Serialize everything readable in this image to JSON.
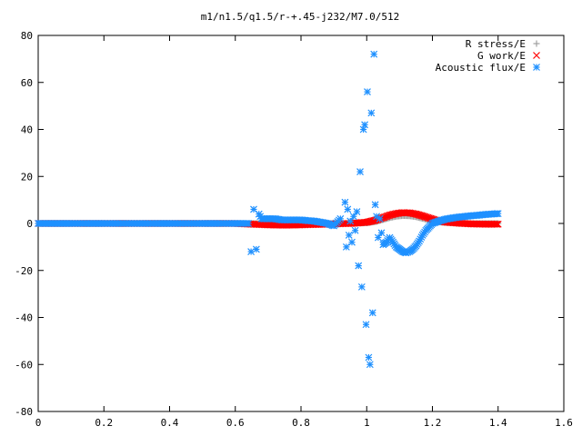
{
  "chart_data": {
    "type": "scatter",
    "title": "m1/n1.5/q1.5/r-+.45-j232/M7.0/512",
    "xlabel": "",
    "ylabel": "",
    "xlim": [
      0,
      1.6
    ],
    "ylim": [
      -80,
      80
    ],
    "x_ticks": [
      "0",
      "0.2",
      "0.4",
      "0.6",
      "0.8",
      "1",
      "1.2",
      "1.4",
      "1.6"
    ],
    "y_ticks": [
      "80",
      "60",
      "40",
      "20",
      "0",
      "-20",
      "-40",
      "-60",
      "-80"
    ],
    "grid": false,
    "legend_position": "top-right",
    "series": [
      {
        "name": "R stress/E",
        "marker": "plus",
        "color": "#a0a0a0",
        "x": [
          0,
          0.1,
          0.2,
          0.3,
          0.4,
          0.5,
          0.6,
          0.65,
          0.7,
          0.8,
          0.9,
          0.95,
          1.0,
          1.03,
          1.05,
          1.07,
          1.09,
          1.11,
          1.13,
          1.15,
          1.17,
          1.19,
          1.21,
          1.24,
          1.28,
          1.32,
          1.36,
          1.4
        ],
        "y": [
          0,
          0,
          0,
          0,
          0,
          0,
          0,
          0,
          0,
          0,
          0,
          0,
          0.2,
          0.8,
          1.6,
          2.4,
          3.0,
          3.3,
          3.2,
          2.8,
          2.1,
          1.4,
          0.8,
          0.3,
          0.1,
          0,
          0,
          0
        ]
      },
      {
        "name": "G work/E",
        "marker": "cross",
        "color": "#ff0000",
        "x": [
          0,
          0.1,
          0.2,
          0.3,
          0.4,
          0.5,
          0.6,
          0.65,
          0.7,
          0.75,
          0.8,
          0.85,
          0.9,
          0.95,
          1.0,
          1.03,
          1.05,
          1.07,
          1.09,
          1.11,
          1.13,
          1.15,
          1.17,
          1.19,
          1.21,
          1.24,
          1.28,
          1.32,
          1.36,
          1.4
        ],
        "y": [
          0,
          0,
          0,
          0,
          0,
          0,
          0,
          -0.3,
          -0.6,
          -0.7,
          -0.6,
          -0.4,
          -0.2,
          0,
          0.5,
          1.5,
          2.5,
          3.5,
          4.2,
          4.6,
          4.5,
          4.0,
          3.2,
          2.3,
          1.4,
          0.6,
          0.1,
          -0.2,
          -0.3,
          -0.3
        ]
      },
      {
        "name": "Acoustic flux/E",
        "marker": "star",
        "color": "#1e90ff",
        "x": [
          0,
          0.05,
          0.1,
          0.15,
          0.2,
          0.25,
          0.3,
          0.35,
          0.4,
          0.45,
          0.5,
          0.55,
          0.6,
          0.64,
          0.648,
          0.656,
          0.664,
          0.672,
          0.68,
          0.7,
          0.72,
          0.74,
          0.76,
          0.78,
          0.8,
          0.82,
          0.84,
          0.86,
          0.88,
          0.9,
          0.92,
          0.934,
          0.938,
          0.942,
          0.946,
          0.95,
          0.955,
          0.96,
          0.965,
          0.97,
          0.975,
          0.98,
          0.985,
          0.99,
          0.994,
          0.998,
          1.002,
          1.006,
          1.01,
          1.014,
          1.018,
          1.022,
          1.026,
          1.03,
          1.035,
          1.04,
          1.045,
          1.05,
          1.06,
          1.07,
          1.08,
          1.09,
          1.1,
          1.11,
          1.12,
          1.13,
          1.14,
          1.15,
          1.16,
          1.17,
          1.18,
          1.19,
          1.2,
          1.22,
          1.24,
          1.26,
          1.28,
          1.3,
          1.32,
          1.34,
          1.36,
          1.38,
          1.4
        ],
        "y": [
          0,
          0,
          0,
          0,
          0,
          0,
          0,
          0,
          0,
          0,
          0,
          0,
          0,
          0,
          -12,
          6,
          -11,
          4,
          2,
          2,
          2,
          1.5,
          1.5,
          1.5,
          1.5,
          1.2,
          1,
          0.5,
          0,
          -1,
          2,
          9,
          -10,
          6,
          -5,
          1,
          -8,
          3,
          -3,
          5,
          -18,
          22,
          -27,
          40,
          42,
          -43,
          56,
          -57,
          -60,
          47,
          -38,
          72,
          8,
          3,
          -6,
          2,
          -4,
          -9,
          -8,
          -6,
          -8,
          -10,
          -11,
          -12,
          -12.5,
          -12,
          -11,
          -9.5,
          -7.5,
          -5,
          -3,
          -1.5,
          0,
          1,
          1.8,
          2.3,
          2.7,
          3.0,
          3.3,
          3.5,
          3.8,
          4.0,
          4.2
        ]
      }
    ]
  }
}
